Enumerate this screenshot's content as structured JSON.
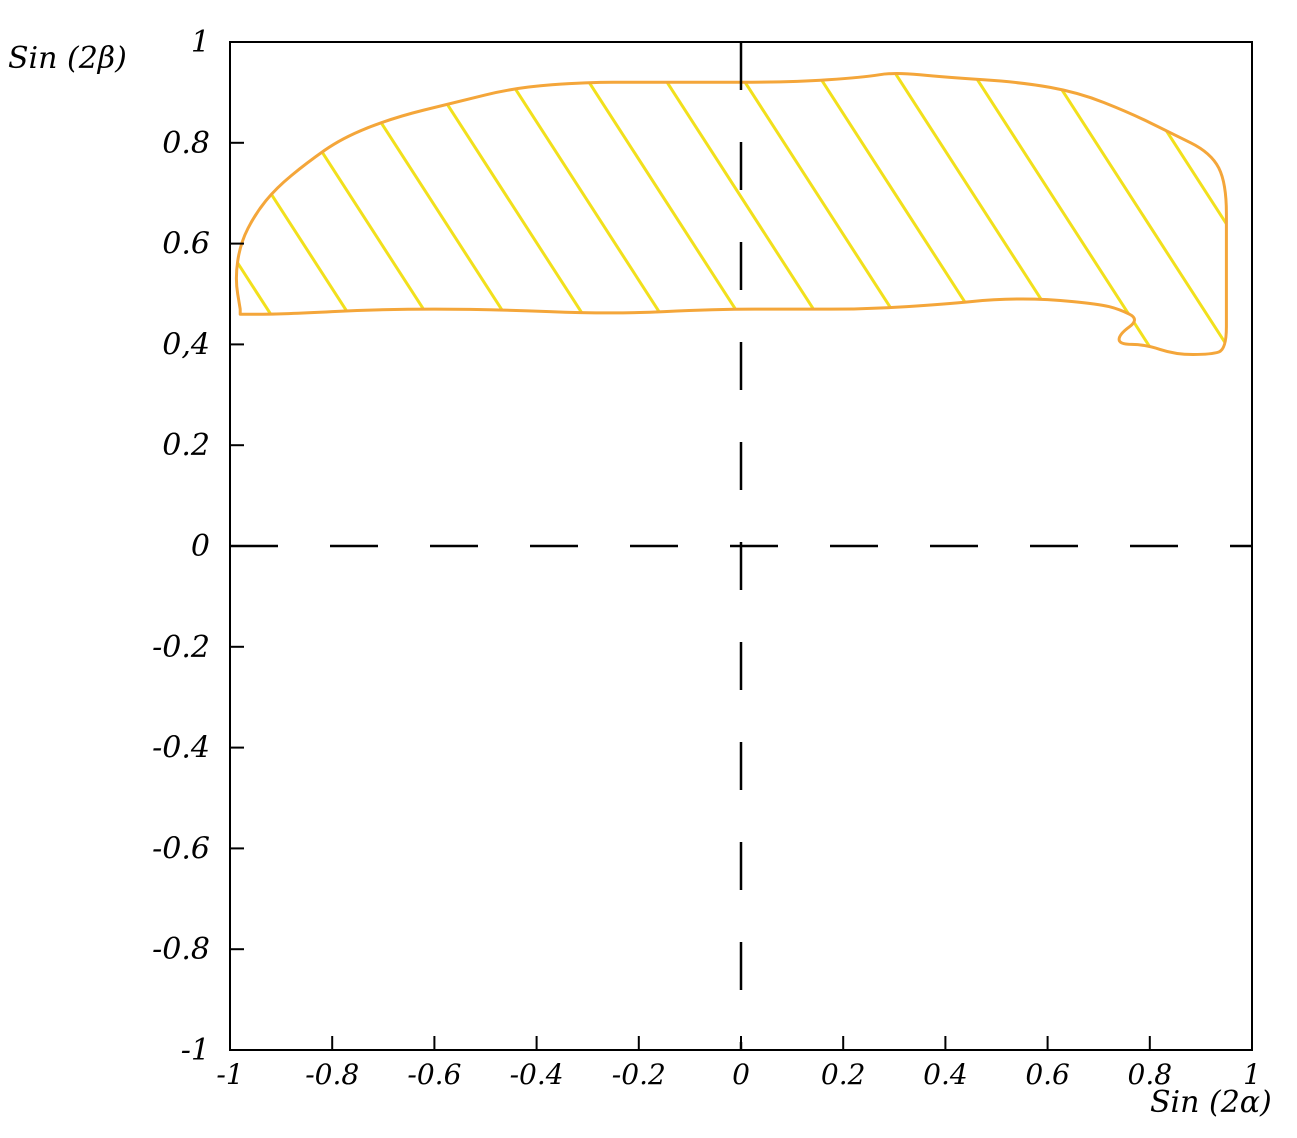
{
  "chart_data": {
    "type": "area",
    "title": "",
    "xlabel": "Sin (2α)",
    "ylabel": "Sin (2β)",
    "xlim": [
      -1,
      1
    ],
    "ylim": [
      -1,
      1
    ],
    "x_ticks": [
      {
        "value": -1,
        "label": "-1"
      },
      {
        "value": -0.8,
        "label": "-0.8"
      },
      {
        "value": -0.6,
        "label": "-0.6"
      },
      {
        "value": -0.4,
        "label": "-0.4"
      },
      {
        "value": -0.2,
        "label": "-0.2"
      },
      {
        "value": 0,
        "label": "0"
      },
      {
        "value": 0.2,
        "label": "0.2"
      },
      {
        "value": 0.4,
        "label": "0.4"
      },
      {
        "value": 0.6,
        "label": "0.6"
      },
      {
        "value": 0.8,
        "label": "0.8"
      },
      {
        "value": 1,
        "label": "1"
      }
    ],
    "y_ticks": [
      {
        "value": 1,
        "label": "1"
      },
      {
        "value": 0.8,
        "label": "0.8"
      },
      {
        "value": 0.6,
        "label": "0.6"
      },
      {
        "value": 0.4,
        "label": "0,4"
      },
      {
        "value": 0.2,
        "label": "0.2"
      },
      {
        "value": 0,
        "label": "0"
      },
      {
        "value": -0.2,
        "label": "-0.2"
      },
      {
        "value": -0.4,
        "label": "-0.4"
      },
      {
        "value": -0.6,
        "label": "-0.6"
      },
      {
        "value": -0.8,
        "label": "-0.8"
      },
      {
        "value": -1,
        "label": "-1"
      }
    ],
    "reference_lines": {
      "x": 0,
      "y": 0,
      "style": "dashed"
    },
    "grid": false,
    "region": {
      "description": "",
      "outline_color": "#f4a63a",
      "hatch_color": "#f2e01c",
      "boundary": [
        [
          -0.98,
          0.47
        ],
        [
          -0.99,
          0.53
        ],
        [
          -0.98,
          0.6
        ],
        [
          -0.95,
          0.66
        ],
        [
          -0.91,
          0.71
        ],
        [
          -0.85,
          0.76
        ],
        [
          -0.78,
          0.81
        ],
        [
          -0.68,
          0.85
        ],
        [
          -0.56,
          0.88
        ],
        [
          -0.44,
          0.91
        ],
        [
          -0.3,
          0.92
        ],
        [
          -0.2,
          0.92
        ],
        [
          -0.1,
          0.92
        ],
        [
          0.1,
          0.92
        ],
        [
          0.24,
          0.93
        ],
        [
          0.3,
          0.94
        ],
        [
          0.4,
          0.93
        ],
        [
          0.55,
          0.92
        ],
        [
          0.66,
          0.9
        ],
        [
          0.76,
          0.86
        ],
        [
          0.84,
          0.82
        ],
        [
          0.92,
          0.78
        ],
        [
          0.95,
          0.72
        ],
        [
          0.95,
          0.6
        ],
        [
          0.95,
          0.48
        ],
        [
          0.95,
          0.39
        ],
        [
          0.92,
          0.38
        ],
        [
          0.85,
          0.38
        ],
        [
          0.79,
          0.4
        ],
        [
          0.74,
          0.4
        ],
        [
          0.74,
          0.42
        ],
        [
          0.78,
          0.45
        ],
        [
          0.74,
          0.47
        ],
        [
          0.7,
          0.48
        ],
        [
          0.6,
          0.49
        ],
        [
          0.5,
          0.49
        ],
        [
          0.4,
          0.48
        ],
        [
          0.25,
          0.47
        ],
        [
          0.1,
          0.47
        ],
        [
          -0.05,
          0.47
        ],
        [
          -0.25,
          0.46
        ],
        [
          -0.5,
          0.47
        ],
        [
          -0.7,
          0.47
        ],
        [
          -0.9,
          0.46
        ],
        [
          -0.98,
          0.46
        ]
      ]
    }
  }
}
